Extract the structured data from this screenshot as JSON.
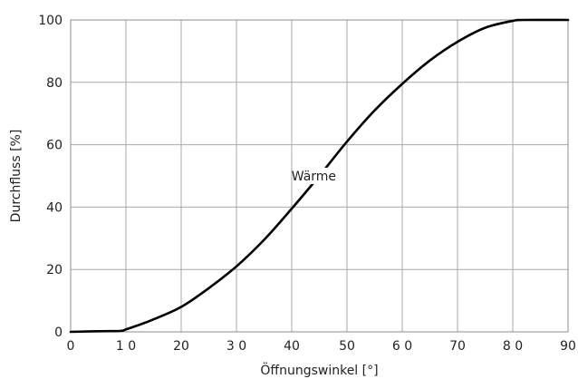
{
  "chart_data": {
    "type": "line",
    "title": "",
    "xlabel": "Öffnungswinkel [°]",
    "ylabel": "Durchfluss [%]",
    "xlim": [
      0,
      90
    ],
    "ylim": [
      0,
      100
    ],
    "grid": true,
    "x_ticks": [
      {
        "value": 0,
        "label": "0"
      },
      {
        "value": 10,
        "label": "1 0"
      },
      {
        "value": 20,
        "label": "20"
      },
      {
        "value": 30,
        "label": "3 0"
      },
      {
        "value": 40,
        "label": "40"
      },
      {
        "value": 50,
        "label": "50"
      },
      {
        "value": 60,
        "label": "6 0"
      },
      {
        "value": 70,
        "label": "70"
      },
      {
        "value": 80,
        "label": "8 0"
      },
      {
        "value": 90,
        "label": "90"
      }
    ],
    "y_ticks": [
      {
        "value": 0,
        "label": "0"
      },
      {
        "value": 20,
        "label": "20"
      },
      {
        "value": 40,
        "label": "40"
      },
      {
        "value": 60,
        "label": "60"
      },
      {
        "value": 80,
        "label": "80"
      },
      {
        "value": 100,
        "label": "100"
      }
    ],
    "series": [
      {
        "name": "Wärme",
        "color": "#000000",
        "x": [
          0,
          5,
          9,
          10,
          12,
          15,
          20,
          25,
          30,
          35,
          40,
          45,
          50,
          55,
          60,
          65,
          70,
          75,
          80,
          82,
          90
        ],
        "y": [
          0,
          0.2,
          0.3,
          0.8,
          2,
          4,
          8,
          14,
          21,
          29.5,
          39.5,
          50,
          61,
          71,
          79.5,
          87,
          93,
          97.5,
          99.7,
          100,
          100
        ]
      }
    ],
    "annotations": [
      {
        "text": "Wärme",
        "x": 44,
        "y": 50
      }
    ]
  }
}
